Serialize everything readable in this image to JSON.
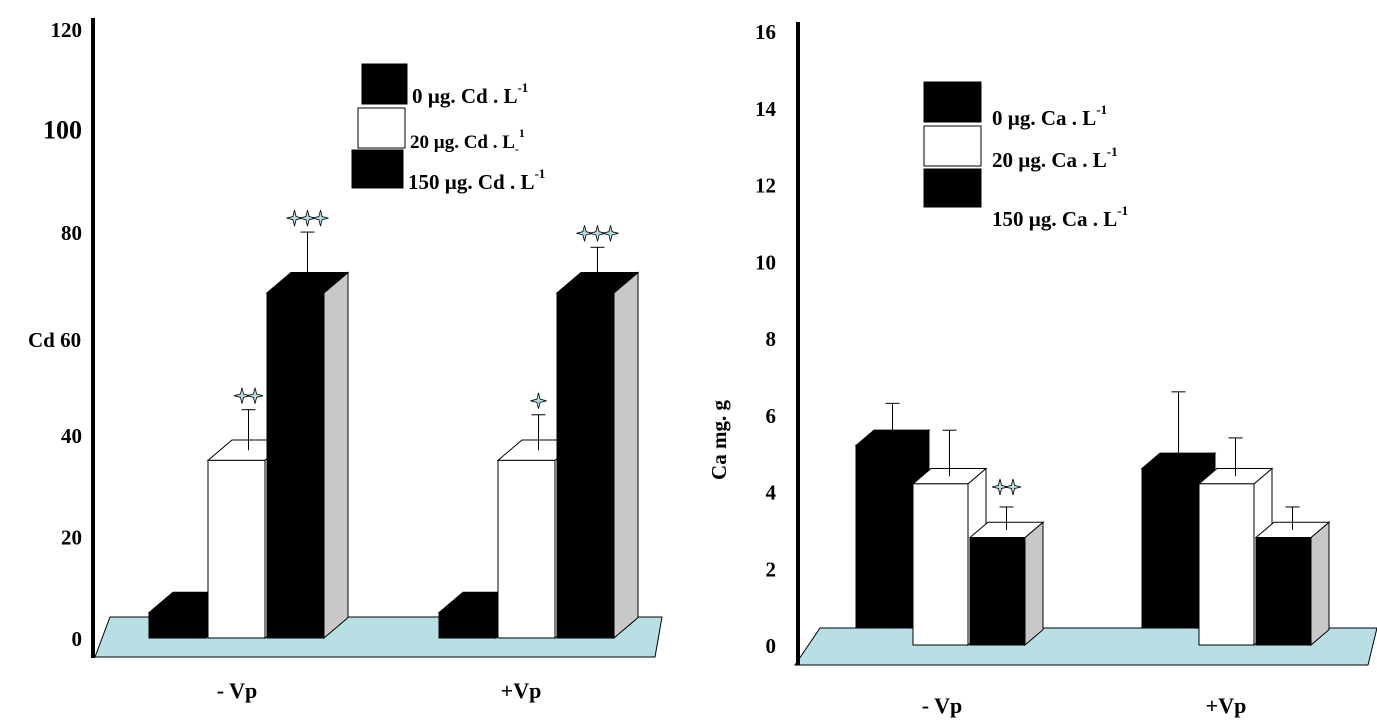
{
  "chart_data": [
    {
      "type": "bar",
      "title": "",
      "xlabel": "",
      "ylabel": "Cd 60",
      "ylim": [
        0,
        120
      ],
      "yticks": [
        "0",
        "20",
        "40",
        "60",
        "80",
        "100",
        "120"
      ],
      "categories": [
        "- Vp",
        "+Vp"
      ],
      "legend": {
        "position": "top-right",
        "entries": [
          {
            "label": "0 µg. Cd . L",
            "sup": "-1",
            "sub": ""
          },
          {
            "label": "20 µg. Cd . L",
            "sup": "1",
            "sub": "-"
          },
          {
            "label": "150 µg. Cd . L",
            "sup": "-1",
            "sub": ""
          }
        ]
      },
      "series": [
        {
          "name": "0 µg. Cd . L-1",
          "values": [
            5,
            5
          ],
          "errors": [
            0,
            0
          ],
          "colors": {
            "front": "#000000",
            "side": "#000000",
            "top": "#000000"
          }
        },
        {
          "name": "20 µg. Cd . L-1",
          "values": [
            35,
            35
          ],
          "errors": [
            8,
            7
          ],
          "colors": {
            "front": "#ffffff",
            "side": "#ffffff",
            "top": "#ffffff"
          }
        },
        {
          "name": "150 µg. Cd . L-1",
          "values": [
            68,
            68
          ],
          "errors": [
            10,
            7
          ],
          "colors": {
            "front": "#000000",
            "side": "#c8c8c8",
            "top": "#000000"
          }
        }
      ],
      "significance": [
        {
          "series": 1,
          "category": 0,
          "stars": 2
        },
        {
          "series": 2,
          "category": 0,
          "stars": 3
        },
        {
          "series": 1,
          "category": 1,
          "stars": 1
        },
        {
          "series": 2,
          "category": 1,
          "stars": 3
        }
      ],
      "floor_color": "#b8e0e4",
      "grid": false
    },
    {
      "type": "bar",
      "title": "",
      "xlabel": "",
      "ylabel": "Ca mg. g",
      "ylim": [
        0,
        16
      ],
      "yticks": [
        "0",
        "2",
        "4",
        "6",
        "8",
        "10",
        "12",
        "14",
        "16"
      ],
      "categories": [
        "- Vp",
        "+Vp"
      ],
      "legend": {
        "position": "top-left",
        "entries": [
          {
            "label": "0 µg. Ca . L",
            "sup": "-1",
            "sub": ""
          },
          {
            "label": "20 µg. Ca . L",
            "sup": "-1",
            "sub": ""
          },
          {
            "label": "150 µg. Ca . L",
            "sup": "-1",
            "sub": ""
          }
        ]
      },
      "series": [
        {
          "name": "0 µg. Ca . L-1",
          "values": [
            5.2,
            4.6
          ],
          "errors": [
            0.9,
            1.8
          ],
          "colors": {
            "front": "#000000",
            "side": "#000000",
            "top": "#000000"
          }
        },
        {
          "name": "20 µg. Ca . L-1",
          "values": [
            4.2,
            4.2
          ],
          "errors": [
            1.2,
            1.0
          ],
          "colors": {
            "front": "#ffffff",
            "side": "#ffffff",
            "top": "#ffffff"
          }
        },
        {
          "name": "150 µg. Ca . L-1",
          "values": [
            2.8,
            2.8
          ],
          "errors": [
            0.6,
            0.6
          ],
          "colors": {
            "front": "#000000",
            "side": "#c8c8c8",
            "top": "#ffffff"
          }
        }
      ],
      "significance": [
        {
          "series": 2,
          "category": 0,
          "stars": 2
        }
      ],
      "floor_color": "#b8e0e4",
      "grid": false
    }
  ]
}
